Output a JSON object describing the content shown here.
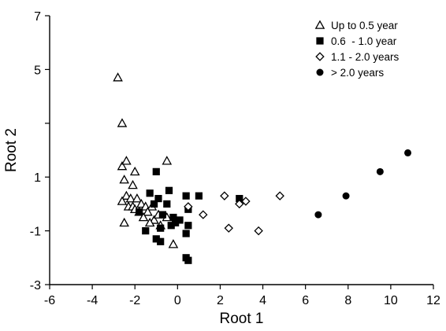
{
  "chart_data": {
    "type": "scatter",
    "title": "",
    "xlabel": "Root 1",
    "ylabel": "Root 2",
    "xlim": [
      -6,
      12
    ],
    "ylim": [
      -3,
      7
    ],
    "xticks": [
      -6,
      -4,
      -2,
      0,
      2,
      4,
      6,
      8,
      10,
      12
    ],
    "yticks": [
      -3,
      -1,
      1,
      3,
      5,
      7
    ],
    "ytick_labels": [
      "-3",
      "-1",
      "1",
      "",
      "5",
      "7"
    ],
    "grid": false,
    "legend_position": "top-right",
    "series": [
      {
        "name": "Up to 0.5 year",
        "marker": "open-triangle",
        "color": "#000000",
        "points": [
          [
            -2.8,
            4.7
          ],
          [
            -2.6,
            3.0
          ],
          [
            -2.6,
            1.4
          ],
          [
            -2.4,
            1.6
          ],
          [
            -0.5,
            1.6
          ],
          [
            -2.0,
            1.2
          ],
          [
            -2.5,
            0.9
          ],
          [
            -2.1,
            0.7
          ],
          [
            -2.4,
            0.3
          ],
          [
            -2.2,
            0.2
          ],
          [
            -1.9,
            0.2
          ],
          [
            -2.6,
            0.1
          ],
          [
            -1.7,
            0.0
          ],
          [
            -2.3,
            -0.1
          ],
          [
            -2.1,
            -0.1
          ],
          [
            -1.5,
            -0.1
          ],
          [
            -1.2,
            -0.1
          ],
          [
            -2.0,
            -0.2
          ],
          [
            -1.8,
            -0.3
          ],
          [
            -1.4,
            -0.3
          ],
          [
            -1.6,
            -0.5
          ],
          [
            -1.1,
            -0.6
          ],
          [
            -2.5,
            -0.7
          ],
          [
            -1.3,
            -0.7
          ],
          [
            -0.8,
            -0.8
          ],
          [
            -0.9,
            -0.4
          ],
          [
            -0.5,
            -0.5
          ],
          [
            -0.2,
            -1.5
          ]
        ]
      },
      {
        "name": "0.6  - 1.0 year",
        "marker": "filled-square",
        "color": "#000000",
        "points": [
          [
            -1.0,
            1.2
          ],
          [
            -0.4,
            0.5
          ],
          [
            -1.3,
            0.4
          ],
          [
            0.4,
            0.3
          ],
          [
            1.0,
            0.3
          ],
          [
            -0.9,
            0.2
          ],
          [
            -0.5,
            0.0
          ],
          [
            -1.1,
            0.0
          ],
          [
            -1.8,
            -0.3
          ],
          [
            0.5,
            -0.2
          ],
          [
            -0.7,
            -0.4
          ],
          [
            -0.2,
            -0.5
          ],
          [
            0.1,
            -0.6
          ],
          [
            -0.3,
            -0.8
          ],
          [
            -0.1,
            -0.7
          ],
          [
            0.5,
            -0.8
          ],
          [
            -0.8,
            -0.9
          ],
          [
            -1.5,
            -1.0
          ],
          [
            0.4,
            -1.1
          ],
          [
            -1.0,
            -1.3
          ],
          [
            -0.8,
            -1.4
          ],
          [
            0.4,
            -2.0
          ],
          [
            0.5,
            -2.1
          ],
          [
            2.9,
            0.2
          ]
        ]
      },
      {
        "name": "1.1 - 2.0 years",
        "marker": "open-diamond",
        "color": "#000000",
        "points": [
          [
            2.2,
            0.3
          ],
          [
            4.8,
            0.3
          ],
          [
            3.2,
            0.1
          ],
          [
            0.5,
            -0.1
          ],
          [
            1.2,
            -0.4
          ],
          [
            2.4,
            -0.9
          ],
          [
            3.8,
            -1.0
          ],
          [
            2.9,
            0.0
          ]
        ]
      },
      {
        "name": "> 2.0 years",
        "marker": "filled-circle",
        "color": "#000000",
        "points": [
          [
            10.8,
            1.9
          ],
          [
            9.5,
            1.2
          ],
          [
            7.9,
            0.3
          ],
          [
            6.6,
            -0.4
          ]
        ]
      }
    ]
  }
}
